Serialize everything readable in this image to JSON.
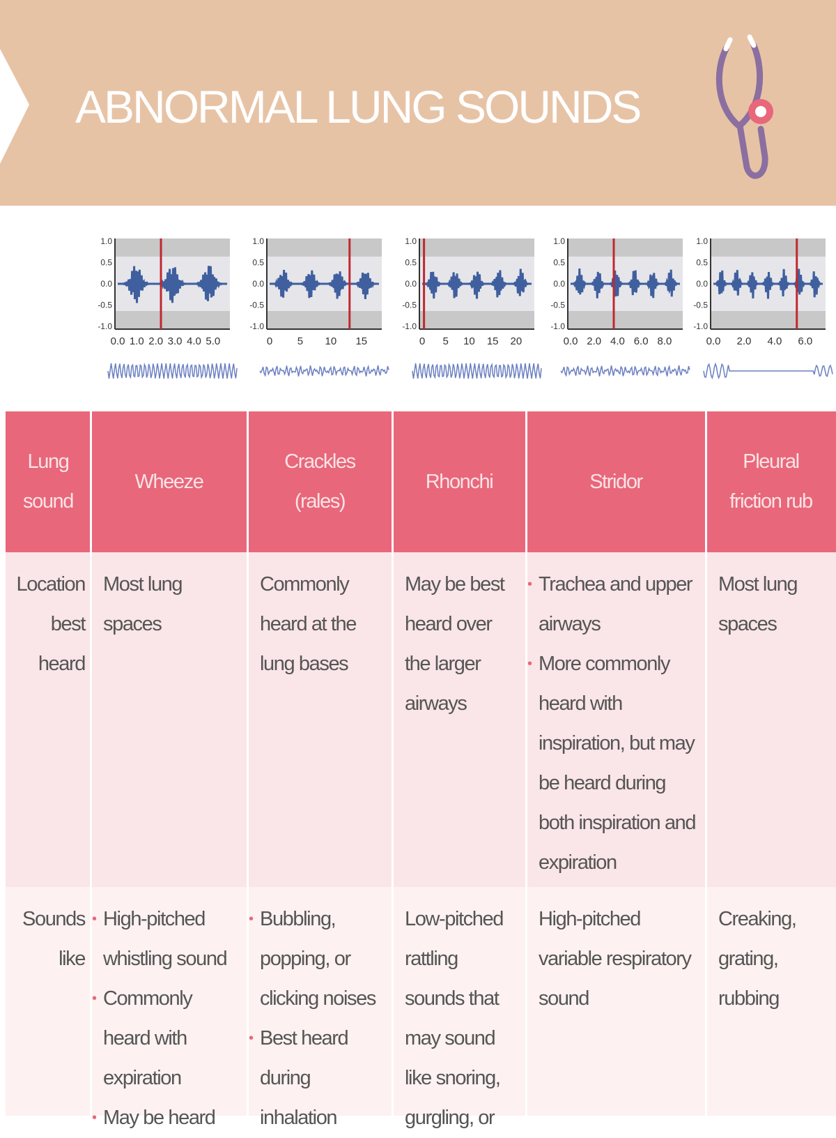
{
  "title": "ABNORMAL LUNG SOUNDS",
  "waveforms": [
    {
      "yticks": [
        "1.0",
        "0.5",
        "0.0",
        "-0.5",
        "-1.0"
      ],
      "xticks": [
        "0.0",
        "1.0",
        "2.0",
        "3.0",
        "4.0",
        "5.0"
      ]
    },
    {
      "yticks": [
        "1.0",
        "0.5",
        "0.0",
        "-0.5",
        "-1.0"
      ],
      "xticks": [
        "0",
        "5",
        "10",
        "15"
      ]
    },
    {
      "yticks": [
        "1.0",
        "0.5",
        "0.0",
        "-0.5",
        "-1.0"
      ],
      "xticks": [
        "0",
        "5",
        "10",
        "15",
        "20"
      ]
    },
    {
      "yticks": [
        "1.0",
        "0.5",
        "0.0",
        "-0.5",
        "-1.0"
      ],
      "xticks": [
        "0.0",
        "2.0",
        "4.0",
        "6.0",
        "8.0"
      ]
    },
    {
      "yticks": [
        "1.0",
        "0.5",
        "0.0",
        "-0.5",
        "-1.0"
      ],
      "xticks": [
        "0.0",
        "2.0",
        "4.0",
        "6.0"
      ]
    }
  ],
  "table": {
    "header": [
      "Lung sound",
      "Wheeze",
      "Crackles (rales)",
      "Rhonchi",
      "Stridor",
      "Pleural friction rub"
    ],
    "rows": [
      {
        "label": "Location best heard",
        "cells": [
          "Most lung spaces",
          "Commonly heard at the lung bases",
          "May be best heard over the larger airways",
          [
            "Trachea and upper airways",
            "More commonly heard with inspiration, but may be heard during both inspiration and expiration"
          ],
          "Most lung spaces"
        ]
      },
      {
        "label": "Sounds like",
        "cells": [
          [
            "High-pitched whistling sound",
            "Commonly heard with expiration",
            "May be heard"
          ],
          [
            "Bubbling, popping, or clicking noises",
            "Best heard during inhalation"
          ],
          "Low-pitched rattling sounds that may sound like snoring, gurgling, or",
          "High-pitched variable respiratory sound",
          "Creaking, grating, rubbing"
        ]
      }
    ]
  }
}
